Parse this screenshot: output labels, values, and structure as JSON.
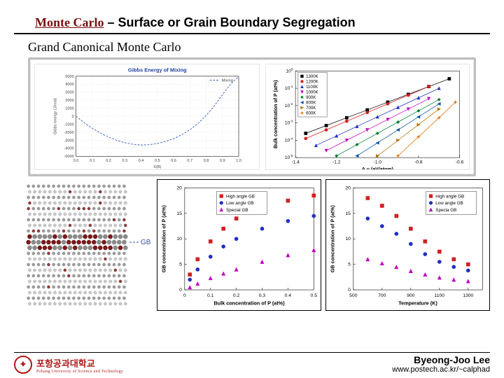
{
  "title": {
    "highlighted": "Monte Carlo",
    "rest": "  –  Surface or Grain Boundary Segregation"
  },
  "subtitle": "Grand Canonical Monte Carlo",
  "gibbs_chart": {
    "type": "line",
    "title": "Gibbs Energy of Mixing",
    "xlabel": "X(B)",
    "ylabel": "Gibbs energy (J/mol)",
    "xlim": [
      0,
      1
    ],
    "xtick_step": 0.1,
    "ylim": [
      -5000,
      5000
    ],
    "ytick_step": 1000,
    "legend": [
      "Mixing"
    ],
    "series": [
      {
        "name": "mixing",
        "color": "#3a60c0",
        "dash": "3 2",
        "points": [
          [
            0,
            0
          ],
          [
            0.05,
            -800
          ],
          [
            0.1,
            -1500
          ],
          [
            0.15,
            -2100
          ],
          [
            0.2,
            -2600
          ],
          [
            0.25,
            -3000
          ],
          [
            0.3,
            -3300
          ],
          [
            0.35,
            -3500
          ],
          [
            0.4,
            -3600
          ],
          [
            0.45,
            -3550
          ],
          [
            0.5,
            -3400
          ],
          [
            0.55,
            -3150
          ],
          [
            0.6,
            -2800
          ],
          [
            0.65,
            -2300
          ],
          [
            0.7,
            -1700
          ],
          [
            0.75,
            -900
          ],
          [
            0.8,
            100
          ],
          [
            0.85,
            1300
          ],
          [
            0.9,
            2700
          ],
          [
            0.95,
            4000
          ],
          [
            1,
            5200
          ]
        ]
      }
    ],
    "grid_color": "#d8d8d8",
    "background_color": "#ffffff"
  },
  "arrhenius_chart": {
    "type": "scatter-log",
    "xlabel": "Δ μ  (eV/atom)",
    "ylabel": "Bulk concentration of P (at%)",
    "xlim": [
      -1.4,
      -0.6
    ],
    "xtick_step": 0.2,
    "ylog_range": [
      -5,
      0
    ],
    "legend": [
      {
        "label": "1300K",
        "color": "#000000",
        "marker": "square"
      },
      {
        "label": "1200K",
        "color": "#d02020",
        "marker": "circle"
      },
      {
        "label": "1100K",
        "color": "#2030c0",
        "marker": "triangle-up"
      },
      {
        "label": "1000K",
        "color": "#c000c0",
        "marker": "triangle-down"
      },
      {
        "label": "900K",
        "color": "#008030",
        "marker": "diamond"
      },
      {
        "label": "800K",
        "color": "#0050a0",
        "marker": "triangle-left"
      },
      {
        "label": "700K",
        "color": "#b07000",
        "marker": "triangle-right"
      },
      {
        "label": "600K",
        "color": "#e07000",
        "marker": "star"
      }
    ],
    "series": [
      {
        "color": "#000000",
        "marker": "square",
        "points": [
          [
            -1.35,
            -3.6
          ],
          [
            -1.25,
            -3.15
          ],
          [
            -1.15,
            -2.7
          ],
          [
            -1.05,
            -2.25
          ],
          [
            -0.95,
            -1.8
          ],
          [
            -0.85,
            -1.35
          ],
          [
            -0.75,
            -0.9
          ],
          [
            -0.65,
            -0.45
          ]
        ]
      },
      {
        "color": "#d02020",
        "marker": "circle",
        "points": [
          [
            -1.35,
            -3.9
          ],
          [
            -1.25,
            -3.4
          ],
          [
            -1.15,
            -2.9
          ],
          [
            -1.05,
            -2.4
          ],
          [
            -0.95,
            -1.9
          ],
          [
            -0.85,
            -1.4
          ],
          [
            -0.75,
            -0.9
          ]
        ]
      },
      {
        "color": "#2030c0",
        "marker": "triangle-up",
        "points": [
          [
            -1.3,
            -4.3
          ],
          [
            -1.2,
            -3.75
          ],
          [
            -1.1,
            -3.2
          ],
          [
            -1.0,
            -2.65
          ],
          [
            -0.9,
            -2.1
          ],
          [
            -0.8,
            -1.55
          ],
          [
            -0.7,
            -1.0
          ]
        ]
      },
      {
        "color": "#c000c0",
        "marker": "triangle-down",
        "points": [
          [
            -1.25,
            -4.6
          ],
          [
            -1.15,
            -4.0
          ],
          [
            -1.05,
            -3.4
          ],
          [
            -0.95,
            -2.8
          ],
          [
            -0.85,
            -2.2
          ],
          [
            -0.75,
            -1.6
          ]
        ]
      },
      {
        "color": "#008030",
        "marker": "diamond",
        "points": [
          [
            -1.2,
            -4.9
          ],
          [
            -1.1,
            -4.25
          ],
          [
            -1.0,
            -3.6
          ],
          [
            -0.9,
            -2.95
          ],
          [
            -0.8,
            -2.3
          ],
          [
            -0.7,
            -1.65
          ]
        ]
      },
      {
        "color": "#0050a0",
        "marker": "triangle-left",
        "points": [
          [
            -1.1,
            -4.9
          ],
          [
            -1.0,
            -4.15
          ],
          [
            -0.9,
            -3.4
          ],
          [
            -0.8,
            -2.65
          ],
          [
            -0.7,
            -1.9
          ]
        ]
      },
      {
        "color": "#b07000",
        "marker": "triangle-right",
        "points": [
          [
            -1.0,
            -4.9
          ],
          [
            -0.9,
            -4.0
          ],
          [
            -0.8,
            -3.1
          ],
          [
            -0.7,
            -2.2
          ]
        ]
      },
      {
        "color": "#e07000",
        "marker": "star",
        "points": [
          [
            -0.9,
            -4.9
          ],
          [
            -0.8,
            -3.8
          ],
          [
            -0.7,
            -2.7
          ],
          [
            -0.62,
            -1.8
          ]
        ]
      }
    ]
  },
  "sim_image": {
    "type": "atomistic",
    "gb_label": "GB",
    "matrix_color": "#8a8a8a",
    "matrix_color_light": "#c0c0c0",
    "solute_color": "#7a1818",
    "rows": 22,
    "cols": 20,
    "gb_rows": [
      9,
      10,
      11
    ]
  },
  "gb_vs_bulk_chart": {
    "type": "scatter",
    "xlabel": "Bulk concentration of P (at%)",
    "ylabel": "GB concentration of P (at%)",
    "xlim": [
      0,
      0.5
    ],
    "xtick_step": 0.1,
    "ylim": [
      0,
      20
    ],
    "ytick_step": 5,
    "legend": [
      {
        "label": "High angle GB",
        "color": "#d02020",
        "marker": "square"
      },
      {
        "label": "Low angle GB",
        "color": "#2030c0",
        "marker": "circle"
      },
      {
        "label": "Special GB",
        "color": "#c000c0",
        "marker": "triangle-up"
      }
    ],
    "series": [
      {
        "color": "#d02020",
        "marker": "square",
        "points": [
          [
            0.02,
            3
          ],
          [
            0.05,
            6
          ],
          [
            0.1,
            9.5
          ],
          [
            0.15,
            12
          ],
          [
            0.2,
            14
          ],
          [
            0.3,
            16
          ],
          [
            0.4,
            17.5
          ],
          [
            0.5,
            18.5
          ]
        ]
      },
      {
        "color": "#2030c0",
        "marker": "circle",
        "points": [
          [
            0.02,
            2
          ],
          [
            0.05,
            4
          ],
          [
            0.1,
            6.5
          ],
          [
            0.15,
            8.5
          ],
          [
            0.2,
            10
          ],
          [
            0.3,
            12
          ],
          [
            0.4,
            13.5
          ],
          [
            0.5,
            14.5
          ]
        ]
      },
      {
        "color": "#c000c0",
        "marker": "triangle-up",
        "points": [
          [
            0.02,
            0.5
          ],
          [
            0.05,
            1.2
          ],
          [
            0.1,
            2.3
          ],
          [
            0.15,
            3.2
          ],
          [
            0.2,
            4
          ],
          [
            0.3,
            5.5
          ],
          [
            0.4,
            6.8
          ],
          [
            0.5,
            7.8
          ]
        ]
      }
    ]
  },
  "gb_vs_temp_chart": {
    "type": "scatter",
    "xlabel": "Temperature (K)",
    "ylabel": "GB concentration of P (at%)",
    "xlim": [
      500,
      1400
    ],
    "xtick_step": 200,
    "ylim": [
      0,
      20
    ],
    "ytick_step": 5,
    "legend": [
      {
        "label": "High angle GB",
        "color": "#d02020",
        "marker": "square"
      },
      {
        "label": "Low angle GB",
        "color": "#2030c0",
        "marker": "circle"
      },
      {
        "label": "Specia GB",
        "color": "#c000c0",
        "marker": "triangle-up"
      }
    ],
    "series": [
      {
        "color": "#d02020",
        "marker": "square",
        "points": [
          [
            600,
            18
          ],
          [
            700,
            16.5
          ],
          [
            800,
            14.5
          ],
          [
            900,
            12
          ],
          [
            1000,
            9.5
          ],
          [
            1100,
            7.5
          ],
          [
            1200,
            6
          ],
          [
            1300,
            5
          ]
        ]
      },
      {
        "color": "#2030c0",
        "marker": "circle",
        "points": [
          [
            600,
            14
          ],
          [
            700,
            12.5
          ],
          [
            800,
            11
          ],
          [
            900,
            9
          ],
          [
            1000,
            7
          ],
          [
            1100,
            5.5
          ],
          [
            1200,
            4.5
          ],
          [
            1300,
            3.8
          ]
        ]
      },
      {
        "color": "#c000c0",
        "marker": "triangle-up",
        "points": [
          [
            600,
            6
          ],
          [
            700,
            5.2
          ],
          [
            800,
            4.5
          ],
          [
            900,
            3.7
          ],
          [
            1000,
            3
          ],
          [
            1100,
            2.4
          ],
          [
            1200,
            2
          ],
          [
            1300,
            1.7
          ]
        ]
      }
    ]
  },
  "footer": {
    "logo_korean": "포항공과대학교",
    "logo_english": "Pohang University of Science and Technology",
    "author_name": "Byeong-Joo Lee",
    "author_url": "www.postech.ac.kr/~calphad"
  }
}
